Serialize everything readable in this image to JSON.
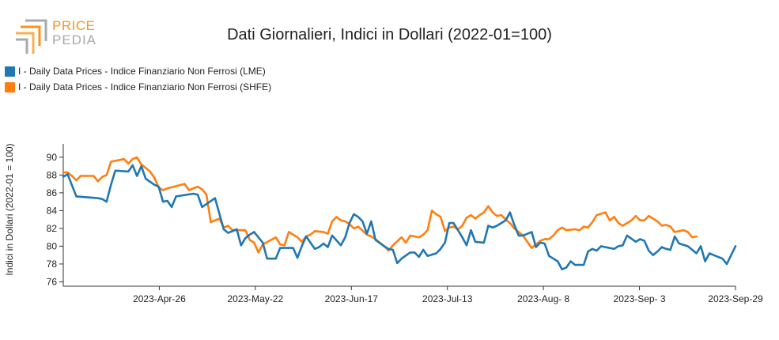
{
  "logo": {
    "line1": "PRICE",
    "line2": "PEDIA"
  },
  "chart_data": {
    "type": "line",
    "title": "Dati Giornalieri, Indici in Dollari (2022-01=100)",
    "ylabel": "Indici in Dollari (2022-01 = 100)",
    "xlabel": "",
    "ylim": [
      75.5,
      91.5
    ],
    "yticks": [
      76,
      78,
      80,
      82,
      84,
      86,
      88,
      90
    ],
    "xticks": [
      "2023-Apr-26",
      "2023-May-22",
      "2023-Jun-17",
      "2023-Jul-13",
      "2023-Aug- 8",
      "2023-Sep- 3",
      "2023-Sep-29"
    ],
    "xtick_days": [
      26,
      52,
      78,
      104,
      130,
      156,
      182
    ],
    "xlim_days": [
      0,
      182
    ],
    "legend_position": "top-left",
    "grid": false,
    "series": [
      {
        "name": "I - Daily Data Prices - Indice Finanziario Non Ferrosi (LME)",
        "color": "#1f77b4",
        "points": [
          [
            0,
            87.8
          ],
          [
            1,
            88.1
          ],
          [
            3,
            85.6
          ],
          [
            8,
            85.4
          ],
          [
            9,
            85.3
          ],
          [
            10,
            85.0
          ],
          [
            11,
            86.9
          ],
          [
            12,
            88.5
          ],
          [
            15,
            88.4
          ],
          [
            16,
            89.1
          ],
          [
            17,
            87.9
          ],
          [
            18,
            89.0
          ],
          [
            19,
            87.6
          ],
          [
            21,
            86.9
          ],
          [
            22,
            86.7
          ],
          [
            23,
            85.0
          ],
          [
            24,
            85.1
          ],
          [
            25,
            84.4
          ],
          [
            26,
            85.6
          ],
          [
            30,
            85.9
          ],
          [
            31,
            85.8
          ],
          [
            32,
            84.4
          ],
          [
            35,
            85.4
          ],
          [
            37,
            81.9
          ],
          [
            38,
            81.5
          ],
          [
            40,
            81.9
          ],
          [
            41,
            80.1
          ],
          [
            42,
            80.9
          ],
          [
            43,
            81.3
          ],
          [
            44,
            81.6
          ],
          [
            46,
            80.4
          ],
          [
            47,
            78.6
          ],
          [
            49,
            78.6
          ],
          [
            50,
            79.8
          ],
          [
            53,
            79.8
          ],
          [
            54,
            78.7
          ],
          [
            55,
            80.0
          ],
          [
            56,
            81.1
          ],
          [
            58,
            79.7
          ],
          [
            59,
            79.9
          ],
          [
            60,
            80.3
          ],
          [
            61,
            79.9
          ],
          [
            62,
            81.2
          ],
          [
            64,
            80.1
          ],
          [
            65,
            81.0
          ],
          [
            66,
            82.6
          ],
          [
            67,
            83.6
          ],
          [
            68,
            83.3
          ],
          [
            69,
            82.8
          ],
          [
            70,
            81.4
          ],
          [
            71,
            82.8
          ],
          [
            72,
            80.7
          ],
          [
            74,
            80.0
          ],
          [
            75,
            79.7
          ],
          [
            76,
            79.6
          ],
          [
            77,
            78.1
          ],
          [
            78,
            78.6
          ],
          [
            80,
            79.3
          ],
          [
            81,
            79.3
          ],
          [
            82,
            78.8
          ],
          [
            83,
            79.6
          ],
          [
            84,
            78.9
          ],
          [
            86,
            79.2
          ],
          [
            87,
            79.7
          ],
          [
            88,
            80.4
          ],
          [
            89,
            82.6
          ],
          [
            90,
            82.6
          ],
          [
            92,
            81.0
          ],
          [
            93,
            80.1
          ],
          [
            94,
            81.8
          ],
          [
            95,
            80.5
          ],
          [
            97,
            80.4
          ],
          [
            98,
            82.3
          ],
          [
            99,
            82.1
          ],
          [
            100,
            82.3
          ],
          [
            102,
            82.9
          ],
          [
            103,
            83.8
          ],
          [
            104,
            82.4
          ],
          [
            105,
            81.2
          ],
          [
            106,
            81.2
          ],
          [
            108,
            81.6
          ],
          [
            109,
            79.9
          ],
          [
            110,
            80.4
          ],
          [
            111,
            80.3
          ],
          [
            112,
            78.9
          ],
          [
            114,
            78.3
          ],
          [
            115,
            77.4
          ],
          [
            116,
            77.6
          ],
          [
            117,
            78.3
          ],
          [
            118,
            77.9
          ],
          [
            120,
            77.9
          ],
          [
            121,
            79.4
          ],
          [
            122,
            79.7
          ],
          [
            123,
            79.5
          ],
          [
            124,
            80.0
          ],
          [
            127,
            79.7
          ],
          [
            128,
            80.0
          ],
          [
            129,
            80.1
          ],
          [
            130,
            81.2
          ],
          [
            132,
            80.5
          ],
          [
            133,
            80.8
          ],
          [
            134,
            80.6
          ],
          [
            135,
            79.5
          ],
          [
            136,
            79.0
          ],
          [
            137,
            79.4
          ],
          [
            138,
            79.9
          ],
          [
            139,
            79.7
          ],
          [
            140,
            79.6
          ],
          [
            141,
            81.1
          ],
          [
            142,
            80.3
          ],
          [
            144,
            80.0
          ],
          [
            145,
            79.6
          ],
          [
            146,
            79.2
          ],
          [
            147,
            80.0
          ],
          [
            148,
            78.3
          ],
          [
            149,
            79.2
          ],
          [
            151,
            78.8
          ],
          [
            152,
            78.6
          ],
          [
            153,
            78.0
          ],
          [
            154,
            79.0
          ],
          [
            155,
            80.0
          ]
        ]
      },
      {
        "name": "I - Daily Data Prices - Indice Finanziario Non Ferrosi (SHFE)",
        "color": "#ff7f0e",
        "points": [
          [
            0,
            88.3
          ],
          [
            1,
            88.3
          ],
          [
            2,
            87.9
          ],
          [
            3,
            87.4
          ],
          [
            4,
            87.9
          ],
          [
            7,
            87.9
          ],
          [
            8,
            87.3
          ],
          [
            9,
            87.8
          ],
          [
            10,
            88.0
          ],
          [
            11,
            89.5
          ],
          [
            14,
            89.8
          ],
          [
            15,
            89.3
          ],
          [
            16,
            89.8
          ],
          [
            17,
            90.0
          ],
          [
            18,
            89.2
          ],
          [
            20,
            88.4
          ],
          [
            21,
            87.7
          ],
          [
            22,
            86.6
          ],
          [
            23,
            86.3
          ],
          [
            24,
            86.5
          ],
          [
            28,
            87.0
          ],
          [
            29,
            86.3
          ],
          [
            31,
            86.7
          ],
          [
            32,
            86.4
          ],
          [
            33,
            85.8
          ],
          [
            34,
            82.7
          ],
          [
            36,
            83.1
          ],
          [
            37,
            82.1
          ],
          [
            38,
            82.3
          ],
          [
            39,
            81.8
          ],
          [
            42,
            81.8
          ],
          [
            43,
            80.7
          ],
          [
            44,
            80.4
          ],
          [
            45,
            79.3
          ],
          [
            46,
            80.2
          ],
          [
            49,
            81.0
          ],
          [
            50,
            80.2
          ],
          [
            51,
            80.1
          ],
          [
            52,
            81.6
          ],
          [
            54,
            81.0
          ],
          [
            55,
            80.5
          ],
          [
            56,
            81.1
          ],
          [
            57,
            81.3
          ],
          [
            58,
            81.7
          ],
          [
            60,
            81.6
          ],
          [
            61,
            81.4
          ],
          [
            62,
            82.8
          ],
          [
            63,
            83.3
          ],
          [
            64,
            82.9
          ],
          [
            65,
            82.8
          ],
          [
            66,
            82.5
          ],
          [
            67,
            82.0
          ],
          [
            68,
            82.2
          ],
          [
            70,
            81.3
          ],
          [
            71,
            81.1
          ],
          [
            72,
            80.8
          ],
          [
            73,
            80.4
          ],
          [
            74,
            80.0
          ],
          [
            75,
            79.5
          ],
          [
            76,
            80.1
          ],
          [
            78,
            81.0
          ],
          [
            79,
            80.4
          ],
          [
            80,
            81.2
          ],
          [
            82,
            81.0
          ],
          [
            83,
            81.3
          ],
          [
            84,
            81.8
          ],
          [
            85,
            84.0
          ],
          [
            86,
            83.6
          ],
          [
            87,
            83.3
          ],
          [
            88,
            81.7
          ],
          [
            89,
            82.1
          ],
          [
            90,
            82.2
          ],
          [
            91,
            81.9
          ],
          [
            92,
            82.3
          ],
          [
            93,
            83.2
          ],
          [
            94,
            83.5
          ],
          [
            95,
            83.1
          ],
          [
            96,
            83.5
          ],
          [
            97,
            83.8
          ],
          [
            98,
            84.5
          ],
          [
            99,
            83.8
          ],
          [
            100,
            83.4
          ],
          [
            101,
            83.5
          ],
          [
            102,
            83.0
          ],
          [
            103,
            82.6
          ],
          [
            104,
            82.0
          ],
          [
            105,
            81.6
          ],
          [
            106,
            81.2
          ],
          [
            107,
            80.5
          ],
          [
            108,
            79.8
          ],
          [
            110,
            80.6
          ],
          [
            111,
            80.8
          ],
          [
            112,
            80.8
          ],
          [
            113,
            81.2
          ],
          [
            114,
            81.8
          ],
          [
            115,
            82.1
          ],
          [
            116,
            81.8
          ],
          [
            118,
            81.9
          ],
          [
            119,
            81.8
          ],
          [
            120,
            82.2
          ],
          [
            121,
            82.1
          ],
          [
            122,
            82.7
          ],
          [
            123,
            83.5
          ],
          [
            125,
            83.8
          ],
          [
            126,
            82.9
          ],
          [
            127,
            83.3
          ],
          [
            128,
            82.6
          ],
          [
            129,
            82.3
          ],
          [
            130,
            82.6
          ],
          [
            131,
            82.9
          ],
          [
            132,
            83.4
          ],
          [
            133,
            82.9
          ],
          [
            134,
            82.9
          ],
          [
            135,
            83.4
          ],
          [
            137,
            82.8
          ],
          [
            138,
            82.3
          ],
          [
            139,
            82.4
          ],
          [
            140,
            82.2
          ],
          [
            141,
            81.6
          ],
          [
            142,
            81.7
          ],
          [
            143,
            81.8
          ],
          [
            144,
            81.6
          ],
          [
            145,
            81.0
          ],
          [
            146,
            81.1
          ]
        ]
      }
    ]
  }
}
